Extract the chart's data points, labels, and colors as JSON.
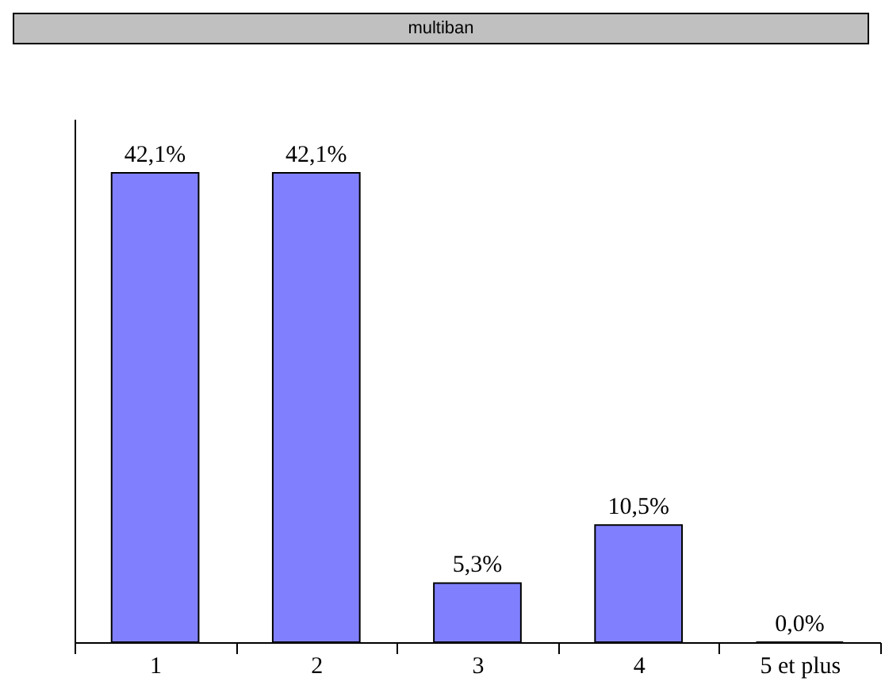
{
  "chart_data": {
    "type": "bar",
    "title": "multiban",
    "categories": [
      "1",
      "2",
      "3",
      "4",
      "5 et plus"
    ],
    "values": [
      42.1,
      42.1,
      5.3,
      10.5,
      0.0
    ],
    "value_labels": [
      "42,1%",
      "42,1%",
      "5,3%",
      "10,5%",
      "0,0%"
    ],
    "color": "#8080ff"
  }
}
